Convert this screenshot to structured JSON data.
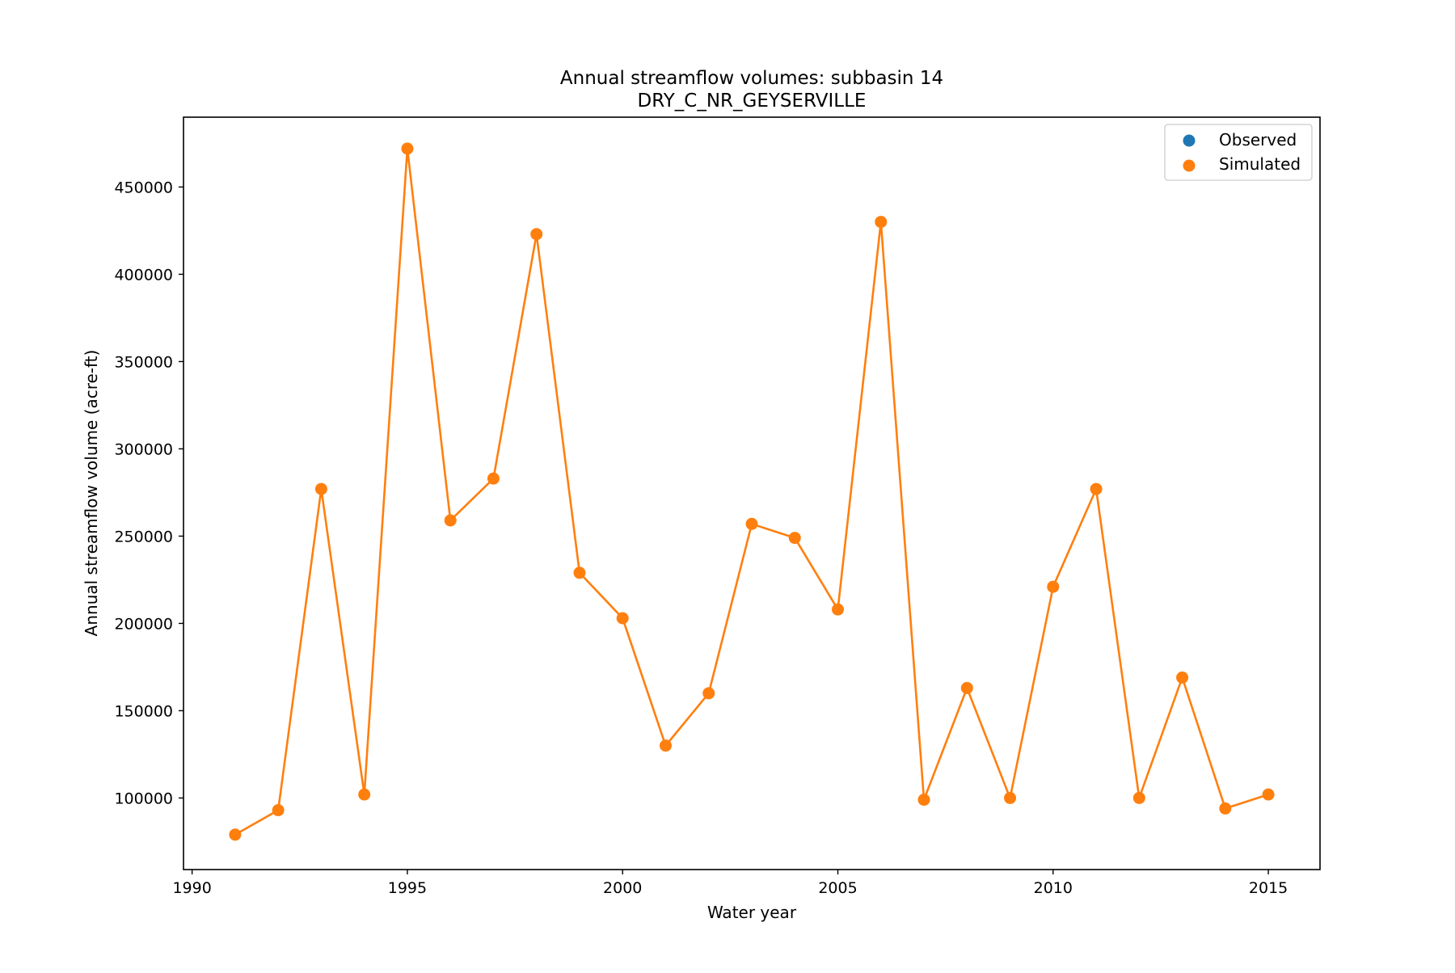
{
  "chart_data": {
    "type": "line",
    "title": "Annual streamflow volumes: subbasin 14",
    "subtitle": "DRY_C_NR_GEYSERVILLE",
    "xlabel": "Water year",
    "ylabel": "Annual streamflow volume (acre-ft)",
    "xlim": [
      1989.8,
      2016.2
    ],
    "ylim": [
      59000,
      490000
    ],
    "xticks": [
      1990,
      1995,
      2000,
      2005,
      2010,
      2015
    ],
    "yticks": [
      100000,
      150000,
      200000,
      250000,
      300000,
      350000,
      400000,
      450000
    ],
    "grid": false,
    "legend_position": "upper right",
    "legend": [
      {
        "name": "Observed",
        "color": "#1f77b4"
      },
      {
        "name": "Simulated",
        "color": "#ff7f0e"
      }
    ],
    "series": [
      {
        "name": "Simulated",
        "color": "#ff7f0e",
        "x": [
          1991,
          1992,
          1993,
          1994,
          1995,
          1996,
          1997,
          1998,
          1999,
          2000,
          2001,
          2002,
          2003,
          2004,
          2005,
          2006,
          2007,
          2008,
          2009,
          2010,
          2011,
          2012,
          2013,
          2014,
          2015
        ],
        "y": [
          79000,
          93000,
          277000,
          102000,
          472000,
          259000,
          283000,
          423000,
          229000,
          203000,
          130000,
          160000,
          257000,
          249000,
          208000,
          430000,
          99000,
          163000,
          100000,
          221000,
          277000,
          100000,
          169000,
          94000,
          102000
        ]
      }
    ]
  }
}
